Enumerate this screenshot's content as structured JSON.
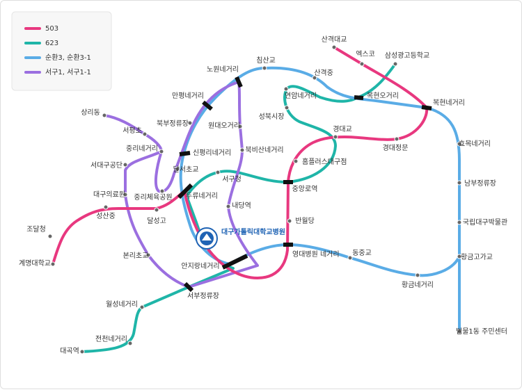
{
  "legend": {
    "items": [
      {
        "label": "503"
      },
      {
        "label": "623"
      },
      {
        "label": "순환3, 순환3-1"
      },
      {
        "label": "서구1, 서구1-1"
      }
    ]
  },
  "hospital": {
    "label": "대구가톨릭대학교병원"
  },
  "stations": [
    {
      "label": "산격대교"
    },
    {
      "label": "엑스코"
    },
    {
      "label": "삼성광고등학교"
    },
    {
      "label": "침산교"
    },
    {
      "label": "산격중"
    },
    {
      "label": "노원네거리"
    },
    {
      "label": "연암네거리"
    },
    {
      "label": "복현오거리"
    },
    {
      "label": "복현네거리"
    },
    {
      "label": "만평네거리"
    },
    {
      "label": "성북시장"
    },
    {
      "label": "상리동"
    },
    {
      "label": "북부정류장"
    },
    {
      "label": "원대오거리"
    },
    {
      "label": "서평초"
    },
    {
      "label": "경대교"
    },
    {
      "label": "경대정문"
    },
    {
      "label": "효목네거리"
    },
    {
      "label": "중리네거리"
    },
    {
      "label": "신평리네거리"
    },
    {
      "label": "북비산네거리"
    },
    {
      "label": "홈플러스대구점"
    },
    {
      "label": "서대구공단"
    },
    {
      "label": "달서초교"
    },
    {
      "label": "서구청"
    },
    {
      "label": "남부정류장"
    },
    {
      "label": "중앙로역"
    },
    {
      "label": "대구의료원"
    },
    {
      "label": "중리체육공원"
    },
    {
      "label": "두류네거리"
    },
    {
      "label": "내당역"
    },
    {
      "label": "성산중"
    },
    {
      "label": "달성고"
    },
    {
      "label": "국립대구박물관"
    },
    {
      "label": "반월당"
    },
    {
      "label": "조달청"
    },
    {
      "label": "영대병원 네거리"
    },
    {
      "label": "동중교"
    },
    {
      "label": "황금고가교"
    },
    {
      "label": "본리초교"
    },
    {
      "label": "안지랑네거리"
    },
    {
      "label": "계명대학교"
    },
    {
      "label": "황금네거리"
    },
    {
      "label": "서부정류장"
    },
    {
      "label": "월성네거리"
    },
    {
      "label": "전천네거리"
    },
    {
      "label": "범물1동 주민센터"
    },
    {
      "label": "대곡역"
    }
  ]
}
